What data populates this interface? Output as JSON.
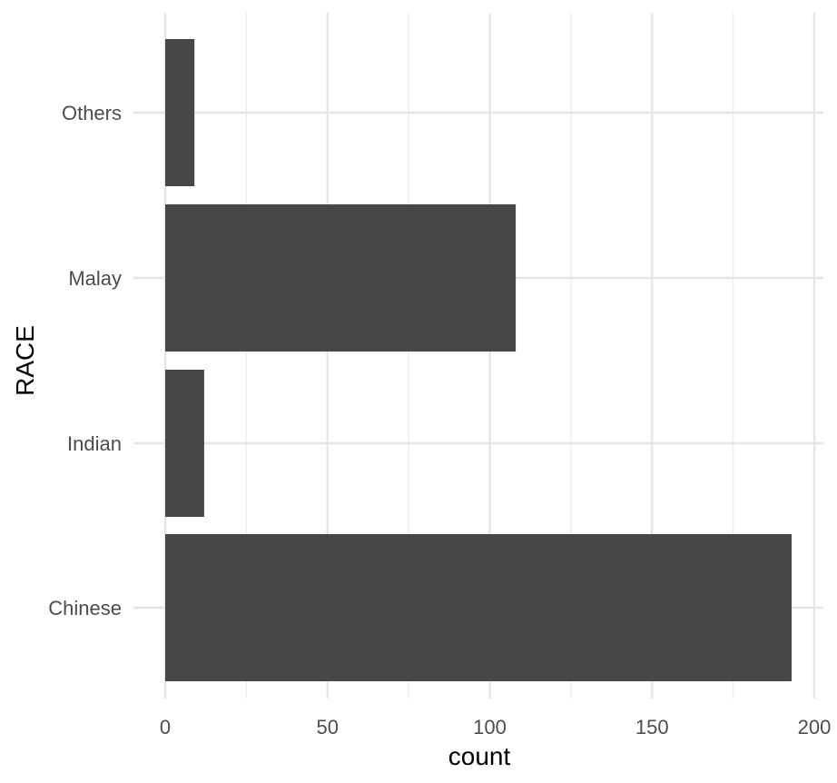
{
  "chart_data": {
    "type": "bar",
    "orientation": "horizontal",
    "categories": [
      "Chinese",
      "Indian",
      "Malay",
      "Others"
    ],
    "values": [
      193,
      12,
      108,
      9
    ],
    "xlabel": "count",
    "ylabel": "RACE",
    "xlim": [
      0,
      200
    ],
    "x_ticks": [
      0,
      50,
      100,
      150,
      200
    ],
    "grid": true,
    "colors": {
      "bar": "#474747",
      "background": "#ffffff",
      "grid": "#e5e5e5"
    }
  }
}
